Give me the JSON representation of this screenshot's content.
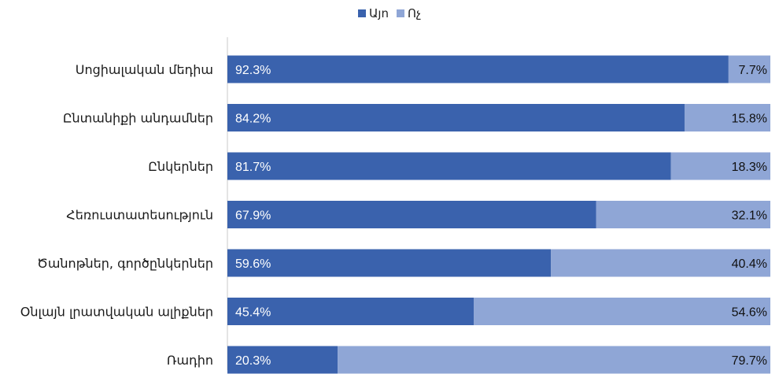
{
  "colors": {
    "yes": "#3a62ad",
    "no": "#8fa6d6",
    "axis": "#c8c8c8",
    "label": "#1a1a1a",
    "value_text": "#ffffff",
    "value_text_no": "#111111"
  },
  "legend": [
    {
      "label": "Այո",
      "color_key": "yes"
    },
    {
      "label": "Ոչ",
      "color_key": "no"
    }
  ],
  "chart_data": {
    "type": "bar",
    "orientation": "horizontal",
    "stacked": true,
    "percent_stacked": true,
    "categories": [
      "Սոցիալական մեդիա",
      "Ընտանիքի անդամներ",
      "Ընկերներ",
      "Հեռուստատեսություն",
      "Ծանոթներ, գործընկերներ",
      "Օնլայն լրատվական ալիքներ",
      "Ռադիո"
    ],
    "series": [
      {
        "name": "Այո",
        "values": [
          92.3,
          84.2,
          81.7,
          67.9,
          59.6,
          45.4,
          20.3
        ],
        "labels": [
          "92.3%",
          "84.2%",
          "81.7%",
          "67.9%",
          "59.6%",
          "45.4%",
          "20.3%"
        ]
      },
      {
        "name": "Ոչ",
        "values": [
          7.7,
          15.8,
          18.3,
          32.1,
          40.4,
          54.6,
          79.7
        ],
        "labels": [
          "7.7%",
          "15.8%",
          "18.3%",
          "32.1%",
          "40.4%",
          "54.6%",
          "79.7%"
        ]
      }
    ],
    "xlim": [
      0,
      100
    ],
    "legend_position": "top-center",
    "grid": false
  }
}
